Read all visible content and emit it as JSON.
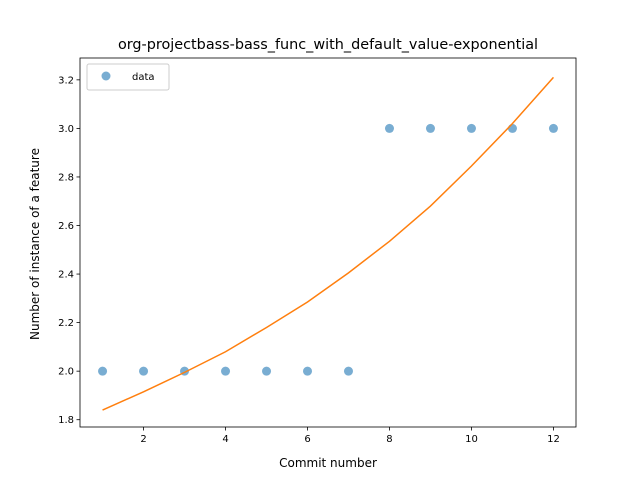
{
  "chart_data": {
    "type": "scatter",
    "title": "org-projectbass-bass_func_with_default_value-exponential",
    "xlabel": "Commit number",
    "ylabel": "Number of instance of a feature",
    "xlim": [
      0.45,
      12.55
    ],
    "ylim": [
      1.77,
      3.29
    ],
    "xticks": [
      2,
      4,
      6,
      8,
      10,
      12
    ],
    "yticks": [
      1.8,
      2.0,
      2.2,
      2.4,
      2.6,
      2.8,
      3.0,
      3.2
    ],
    "xtick_labels": [
      "2",
      "4",
      "6",
      "8",
      "10",
      "12"
    ],
    "ytick_labels": [
      "1.8",
      "2.0",
      "2.2",
      "2.4",
      "2.6",
      "2.8",
      "3.0",
      "3.2"
    ],
    "grid": false,
    "legend": {
      "position": "top-left",
      "entries": [
        "data"
      ]
    },
    "series": [
      {
        "name": "data",
        "kind": "scatter",
        "color": "#1f77b4",
        "x": [
          1,
          2,
          3,
          4,
          5,
          6,
          7,
          8,
          9,
          10,
          11,
          12
        ],
        "y": [
          2.0,
          2.0,
          2.0,
          2.0,
          2.0,
          2.0,
          2.0,
          3.0,
          3.0,
          3.0,
          3.0,
          3.0
        ]
      },
      {
        "kind": "line",
        "color": "#ff7f0e",
        "x": [
          1,
          2,
          3,
          4,
          5,
          6,
          7,
          8,
          9,
          10,
          11,
          12
        ],
        "y": [
          1.84,
          1.915,
          1.995,
          2.08,
          2.18,
          2.285,
          2.405,
          2.535,
          2.68,
          2.845,
          3.02,
          3.21
        ]
      }
    ]
  }
}
